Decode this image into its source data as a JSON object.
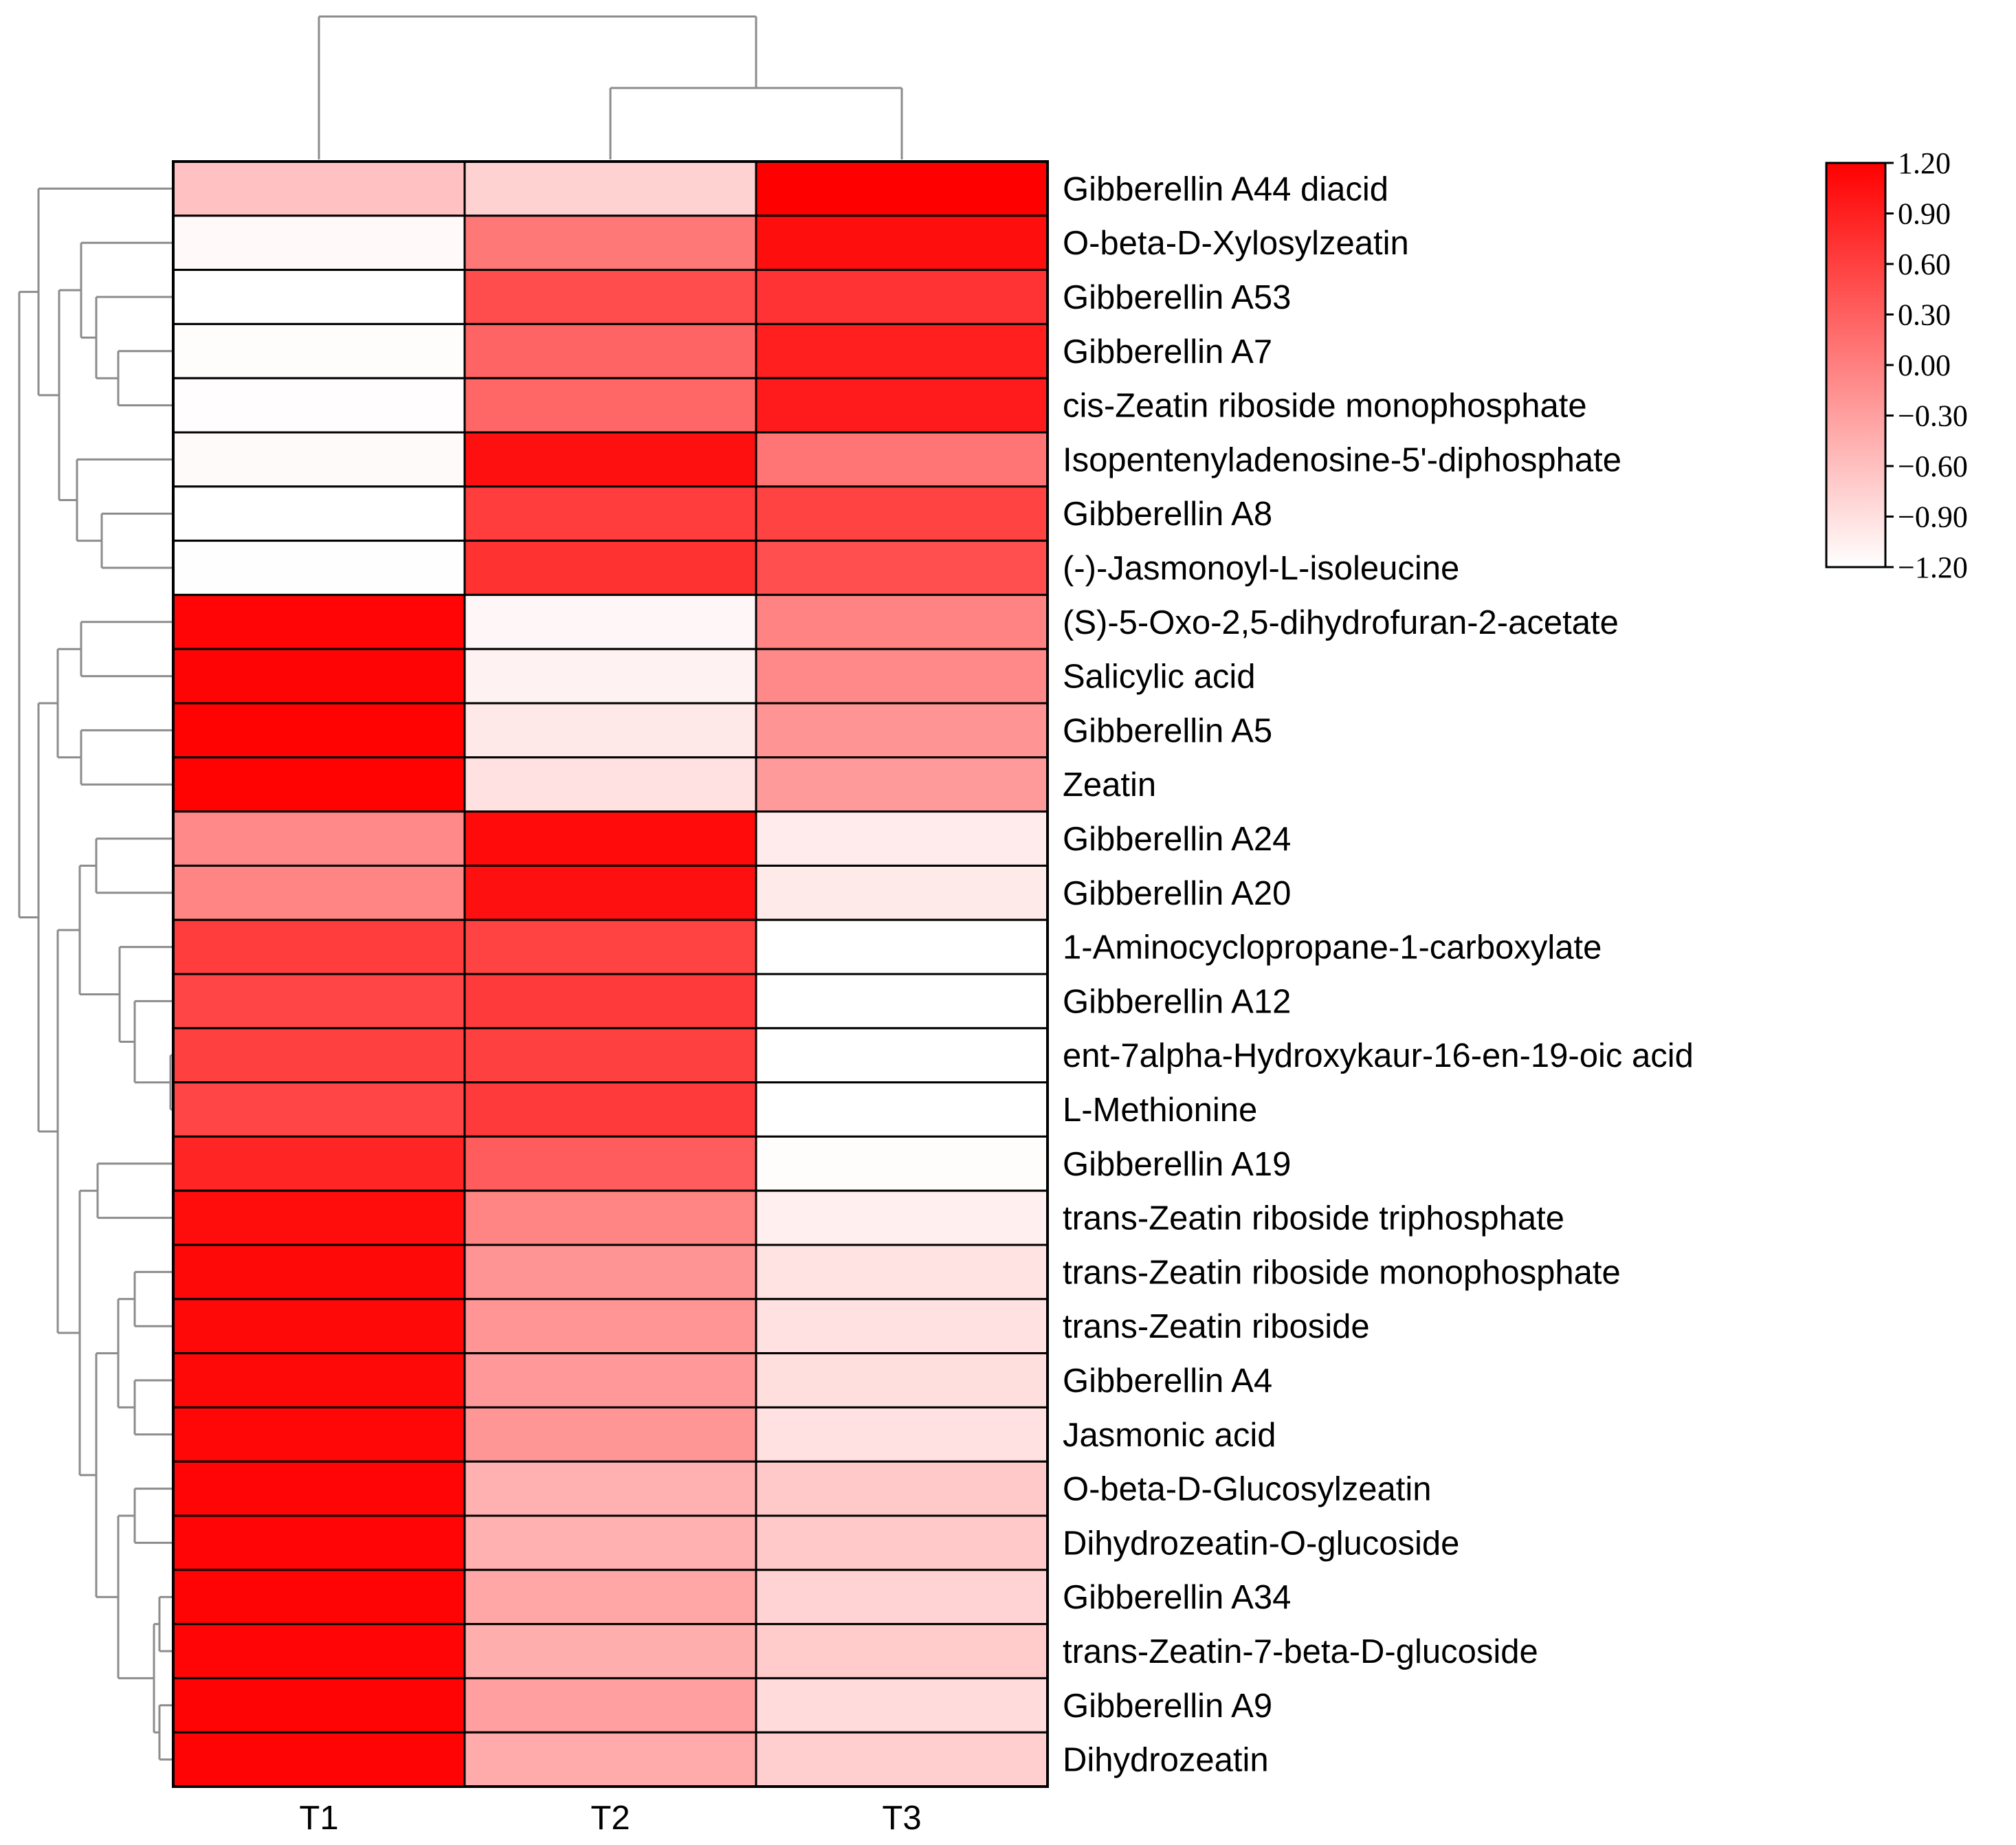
{
  "chart_data": {
    "type": "heatmap",
    "columns": [
      "T1",
      "T2",
      "T3"
    ],
    "rows": [
      "Gibberellin A44 diacid",
      "O-beta-D-Xylosylzeatin",
      "Gibberellin A53",
      "Gibberellin A7",
      "cis-Zeatin riboside monophosphate",
      "Isopentenyladenosine-5'-diphosphate",
      "Gibberellin A8",
      "(-)-Jasmonoyl-L-isoleucine",
      "(S)-5-Oxo-2,5-dihydrofuran-2-acetate",
      "Salicylic acid",
      "Gibberellin A5",
      "Zeatin",
      "Gibberellin A24",
      "Gibberellin A20",
      "1-Aminocyclopropane-1-carboxylate",
      "Gibberellin A12",
      "ent-7alpha-Hydroxykaur-16-en-19-oic acid",
      "L-Methionine",
      "Gibberellin A19",
      "trans-Zeatin riboside triphosphate",
      "trans-Zeatin riboside monophosphate",
      "trans-Zeatin riboside",
      "Gibberellin A4",
      "Jasmonic acid",
      "O-beta-D-Glucosylzeatin",
      "Dihydrozeatin-O-glucoside",
      "Gibberellin A34",
      "trans-Zeatin-7-beta-D-glucoside",
      "Gibberellin A9",
      "Dihydrozeatin"
    ],
    "values": [
      [
        -0.62,
        -0.78,
        1.2
      ],
      [
        -1.14,
        0.07,
        1.07
      ],
      [
        -1.2,
        0.48,
        0.72
      ],
      [
        -1.17,
        0.26,
        0.91
      ],
      [
        -1.18,
        0.23,
        0.95
      ],
      [
        -1.15,
        1.05,
        0.1
      ],
      [
        -1.2,
        0.63,
        0.57
      ],
      [
        -1.19,
        0.73,
        0.46
      ],
      [
        1.15,
        -1.12,
        -0.03
      ],
      [
        1.16,
        -1.08,
        -0.08
      ],
      [
        1.17,
        -0.98,
        -0.19
      ],
      [
        1.17,
        -0.92,
        -0.25
      ],
      [
        -0.09,
        1.1,
        -1.01
      ],
      [
        -0.05,
        1.05,
        -1.0
      ],
      [
        0.63,
        0.57,
        -1.2
      ],
      [
        0.55,
        0.65,
        -1.2
      ],
      [
        0.6,
        0.6,
        -1.2
      ],
      [
        0.55,
        0.65,
        -1.2
      ],
      [
        0.85,
        0.32,
        -1.17
      ],
      [
        1.09,
        -0.04,
        -1.05
      ],
      [
        1.12,
        -0.19,
        -0.93
      ],
      [
        1.12,
        -0.2,
        -0.92
      ],
      [
        1.12,
        -0.23,
        -0.89
      ],
      [
        1.13,
        -0.21,
        -0.92
      ],
      [
        1.15,
        -0.46,
        -0.69
      ],
      [
        1.15,
        -0.46,
        -0.69
      ],
      [
        1.16,
        -0.37,
        -0.79
      ],
      [
        1.15,
        -0.44,
        -0.71
      ],
      [
        1.16,
        -0.3,
        -0.86
      ],
      [
        1.16,
        -0.41,
        -0.75
      ]
    ],
    "colormap": {
      "min": -1.2,
      "max": 1.2,
      "low_color": "#ffffff",
      "high_color": "#ff0000"
    },
    "colorbar": {
      "ticks": [
        "1.20",
        "0.90",
        "0.60",
        "0.30",
        "0.00",
        "−0.30",
        "−0.60",
        "−0.90",
        "−1.20"
      ],
      "placement": "top-right"
    },
    "dendrograms": {
      "columns": "top",
      "rows": "left"
    }
  }
}
